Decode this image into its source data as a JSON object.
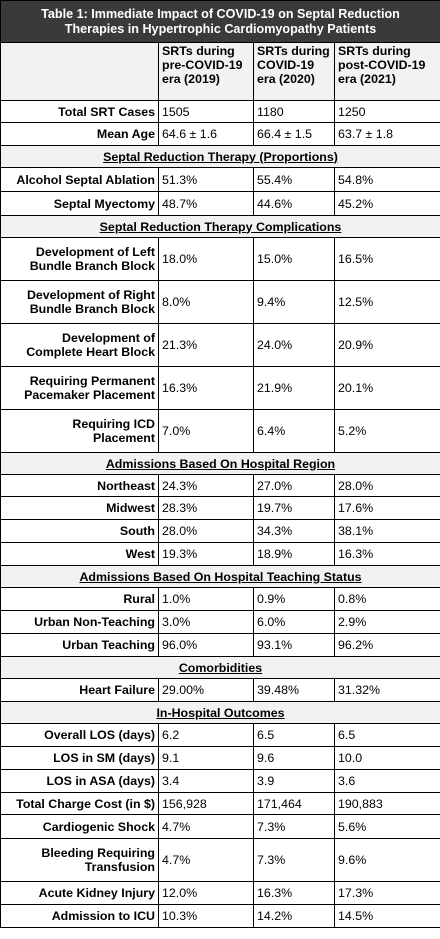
{
  "table": {
    "title_line1": "Table 1: Immediate Impact of COVID-19 on Septal Reduction",
    "title_line2": "Therapies in Hypertrophic Cardiomyopathy Patients",
    "columns": [
      [
        "SRTs during",
        "pre-COVID-19",
        "era (2019)"
      ],
      [
        "SRTs during",
        "COVID-19",
        "era (2020)"
      ],
      [
        "SRTs during",
        "post-COVID-19",
        "era (2021)"
      ]
    ],
    "rows": [
      {
        "type": "row",
        "h": 22,
        "label": [
          "Total SRT Cases"
        ],
        "values": [
          "1505",
          "1180",
          "1250"
        ]
      },
      {
        "type": "row",
        "h": 23,
        "label": [
          "Mean Age"
        ],
        "values": [
          "64.6 ± 1.6",
          "66.4 ± 1.5",
          "63.7 ± 1.8"
        ]
      },
      {
        "type": "section",
        "h": 22,
        "label": "Septal Reduction Therapy (Proportions)"
      },
      {
        "type": "row",
        "h": 24,
        "label": [
          "Alcohol Septal Ablation"
        ],
        "values": [
          "51.3%",
          "55.4%",
          "54.8%"
        ]
      },
      {
        "type": "row",
        "h": 24,
        "label": [
          "Septal Myectomy"
        ],
        "values": [
          "48.7%",
          "44.6%",
          "45.2%"
        ]
      },
      {
        "type": "section",
        "h": 22,
        "label": "Septal Reduction Therapy Complications"
      },
      {
        "type": "row",
        "h": 43,
        "label": [
          "Development of Left",
          "Bundle Branch Block"
        ],
        "values": [
          "18.0%",
          "15.0%",
          "16.5%"
        ]
      },
      {
        "type": "row",
        "h": 43,
        "label": [
          "Development of Right",
          "Bundle Branch Block"
        ],
        "values": [
          "8.0%",
          "9.4%",
          "12.5%"
        ]
      },
      {
        "type": "row",
        "h": 43,
        "label": [
          "Development of",
          "Complete Heart Block"
        ],
        "values": [
          "21.3%",
          "24.0%",
          "20.9%"
        ]
      },
      {
        "type": "row",
        "h": 43,
        "label": [
          "Requiring Permanent",
          "Pacemaker Placement"
        ],
        "values": [
          "16.3%",
          "21.9%",
          "20.1%"
        ]
      },
      {
        "type": "row",
        "h": 43,
        "label": [
          "Requiring ICD",
          "Placement"
        ],
        "values": [
          "7.0%",
          "6.4%",
          "5.2%"
        ]
      },
      {
        "type": "section",
        "h": 22,
        "label": "Admissions Based On Hospital Region"
      },
      {
        "type": "row",
        "h": 22,
        "label": [
          "Northeast"
        ],
        "values": [
          "24.3%",
          "27.0%",
          "28.0%"
        ]
      },
      {
        "type": "row",
        "h": 23,
        "label": [
          "Midwest"
        ],
        "values": [
          "28.3%",
          "19.7%",
          "17.6%"
        ]
      },
      {
        "type": "row",
        "h": 23,
        "label": [
          "South"
        ],
        "values": [
          "28.0%",
          "34.3%",
          "38.1%"
        ]
      },
      {
        "type": "row",
        "h": 23,
        "label": [
          "West"
        ],
        "values": [
          "19.3%",
          "18.9%",
          "16.3%"
        ]
      },
      {
        "type": "section",
        "h": 22,
        "label": "Admissions Based On Hospital Teaching Status"
      },
      {
        "type": "row",
        "h": 23,
        "label": [
          "Rural"
        ],
        "values": [
          "1.0%",
          "0.9%",
          "0.8%"
        ]
      },
      {
        "type": "row",
        "h": 23,
        "label": [
          "Urban Non-Teaching"
        ],
        "values": [
          "3.0%",
          "6.0%",
          "2.9%"
        ]
      },
      {
        "type": "row",
        "h": 23,
        "label": [
          "Urban Teaching"
        ],
        "values": [
          "96.0%",
          "93.1%",
          "96.2%"
        ]
      },
      {
        "type": "section",
        "h": 22,
        "label": "Comorbidities"
      },
      {
        "type": "row",
        "h": 23,
        "label": [
          "Heart Failure"
        ],
        "values": [
          "29.00%",
          "39.48%",
          "31.32%"
        ]
      },
      {
        "type": "section",
        "h": 22,
        "label": "In-Hospital Outcomes"
      },
      {
        "type": "row",
        "h": 23,
        "label": [
          "Overall LOS (days)"
        ],
        "values": [
          "6.2",
          "6.5",
          "6.5"
        ]
      },
      {
        "type": "row",
        "h": 23,
        "label": [
          "LOS in SM (days)"
        ],
        "values": [
          "9.1",
          "9.6",
          "10.0"
        ]
      },
      {
        "type": "row",
        "h": 23,
        "label": [
          "LOS in ASA (days)"
        ],
        "values": [
          "3.4",
          "3.9",
          "3.6"
        ]
      },
      {
        "type": "row",
        "h": 22,
        "label": [
          "Total Charge Cost (in $)"
        ],
        "values": [
          "156,928",
          "171,464",
          "190,883"
        ]
      },
      {
        "type": "row",
        "h": 24,
        "label": [
          "Cardiogenic Shock"
        ],
        "values": [
          "4.7%",
          "7.3%",
          "5.6%"
        ]
      },
      {
        "type": "row",
        "h": 43,
        "label": [
          "Bleeding Requiring",
          "Transfusion"
        ],
        "values": [
          "4.7%",
          "7.3%",
          "9.6%"
        ]
      },
      {
        "type": "row",
        "h": 23,
        "label": [
          "Acute Kidney Injury"
        ],
        "values": [
          "12.0%",
          "16.3%",
          "17.3%"
        ]
      },
      {
        "type": "row",
        "h": 23,
        "label": [
          "Admission to ICU"
        ],
        "values": [
          "10.3%",
          "14.2%",
          "14.5%"
        ]
      }
    ]
  },
  "colors": {
    "title_background": "#3a3a3a",
    "header_background": "#f2f2f2",
    "border": "#000000"
  }
}
